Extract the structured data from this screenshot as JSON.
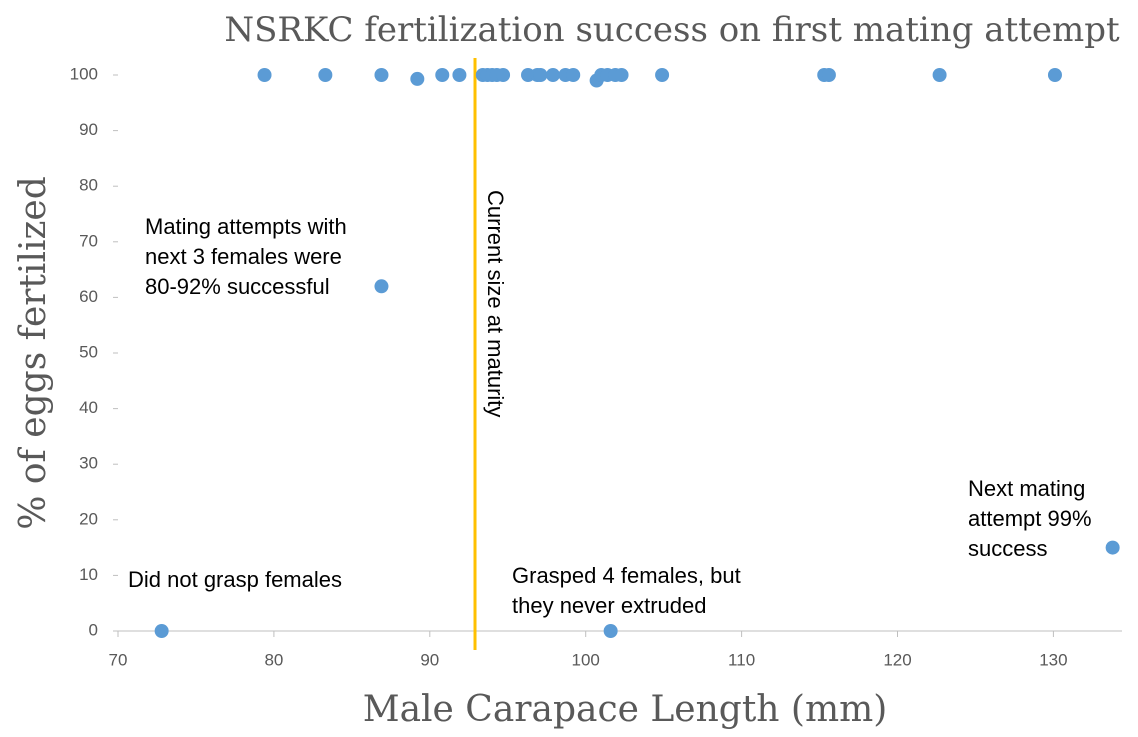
{
  "chart_data": {
    "type": "scatter",
    "title": "NSRKC fertilization success on first mating attempt",
    "x_label": "Male Carapace Length (mm)",
    "y_label": "% of eggs fertilized",
    "color": "#5b9bd5",
    "xlim": [
      70,
      134.4
    ],
    "xticks": [
      70,
      80,
      90,
      100,
      110,
      120,
      130
    ],
    "ylim": [
      0,
      100
    ],
    "yticks": [
      0,
      10,
      20,
      30,
      40,
      50,
      60,
      70,
      80,
      90,
      100
    ],
    "x": [
      79.4,
      83.3,
      86.9,
      89.2,
      90.8,
      91.9,
      93.4,
      93.7,
      94.0,
      94.3,
      94.7,
      96.3,
      96.9,
      97.1,
      97.9,
      98.7,
      99.2,
      100.7,
      101.0,
      101.4,
      101.9,
      102.3,
      104.9,
      115.3,
      115.6,
      122.7,
      130.1,
      86.9,
      72.8,
      101.6,
      133.8
    ],
    "values": [
      100,
      100,
      100,
      99.3,
      100,
      100,
      100,
      100,
      100,
      100,
      100,
      100,
      100,
      100,
      100,
      100,
      100,
      99,
      100,
      100,
      100,
      100,
      100,
      100,
      100,
      100,
      100,
      62,
      0,
      0,
      15
    ],
    "reference_line": {
      "x": 92.9,
      "label": "Current size at maturity",
      "color": "#ffc000"
    },
    "annotations": [
      [
        "Mating attempts with",
        "next 3 females were",
        "80-92% successful"
      ],
      [
        "Did not grasp females"
      ],
      [
        "Grasped 4 females, but",
        "they never extruded"
      ],
      [
        "Next mating",
        "attempt 99%",
        "success"
      ]
    ]
  }
}
